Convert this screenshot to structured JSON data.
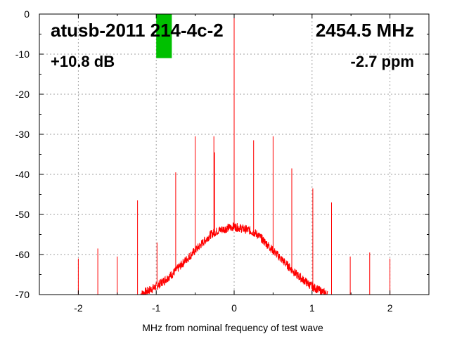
{
  "chart_data": {
    "type": "line",
    "title": "atusb-20111214-4c-2",
    "title_display": "atusb-2011 214-4c-2",
    "frequency_label": "2454.5 MHz",
    "gain_label": "+10.8 dB",
    "ppm_label": "-2.7 ppm",
    "xlabel": "MHz from nominal frequency of test wave",
    "ylabel": "",
    "xlim": [
      -2.5,
      2.5
    ],
    "ylim": [
      -70,
      0
    ],
    "xticks": [
      -2,
      -1,
      0,
      1,
      2
    ],
    "xtick_labels": [
      "-2",
      "-1",
      "0",
      "1",
      "2"
    ],
    "yticks": [
      0,
      -10,
      -20,
      -30,
      -40,
      -50,
      -60,
      -70
    ],
    "ytick_labels": [
      "0",
      "-10",
      "-20",
      "-30",
      "-40",
      "-50",
      "-60",
      "-70"
    ],
    "grid": true,
    "series": [
      {
        "color": "#ff0000",
        "noise_floor": {
          "x": [
            -1.2,
            -1.0,
            -0.8,
            -0.6,
            -0.5,
            -0.4,
            -0.3,
            -0.2,
            -0.1,
            0.0,
            0.1,
            0.2,
            0.3,
            0.4,
            0.5,
            0.6,
            0.8,
            1.0,
            1.2
          ],
          "y": [
            -70,
            -68,
            -65,
            -61,
            -59,
            -57,
            -55,
            -54,
            -53.5,
            -53,
            -53.5,
            -54,
            -55,
            -57,
            -59,
            -61,
            -65,
            -68,
            -70
          ]
        },
        "spurs": [
          {
            "x": 0.0,
            "y": 0
          },
          {
            "x": -2.0,
            "y": -61
          },
          {
            "x": -1.75,
            "y": -58.5
          },
          {
            "x": -1.5,
            "y": -60.5
          },
          {
            "x": -1.24,
            "y": -46.5
          },
          {
            "x": -0.99,
            "y": -57
          },
          {
            "x": -0.75,
            "y": -39.5
          },
          {
            "x": -0.5,
            "y": -30.5
          },
          {
            "x": -0.26,
            "y": -30.5
          },
          {
            "x": -0.25,
            "y": -34.5
          },
          {
            "x": 0.25,
            "y": -31.5
          },
          {
            "x": 0.5,
            "y": -30.5
          },
          {
            "x": 0.74,
            "y": -38.5
          },
          {
            "x": 1.01,
            "y": -43.5
          },
          {
            "x": 1.25,
            "y": -47
          },
          {
            "x": 1.49,
            "y": -60.5
          },
          {
            "x": 1.74,
            "y": -59.5
          },
          {
            "x": 2.0,
            "y": -61
          }
        ]
      }
    ],
    "marker": {
      "color": "#00c000",
      "x_from": -1.0,
      "x_to": -0.8,
      "y_from": 0,
      "y_to": -11
    }
  }
}
